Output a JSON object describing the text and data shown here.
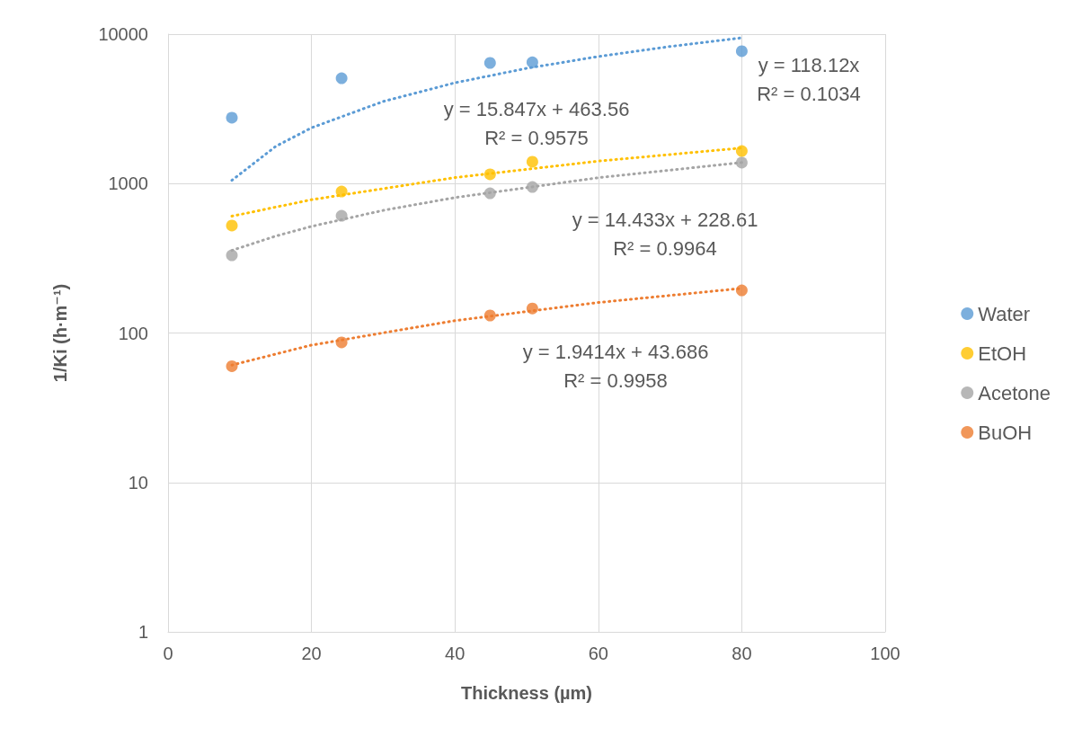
{
  "chart_data": {
    "type": "scatter",
    "xlabel": "Thickness (µm)",
    "ylabel": "1/Ki (h·m⁻¹)",
    "series": [
      {
        "name": "Water",
        "color": "#5b9bd5",
        "marker": "circle",
        "x": [
          8.9,
          24.2,
          44.9,
          50.8,
          80
        ],
        "values": [
          2760,
          5070,
          6420,
          6480,
          7690
        ]
      },
      {
        "name": "EtOH",
        "color": "#ffc000",
        "marker": "circle",
        "x": [
          8.9,
          24.2,
          44.9,
          50.8,
          80
        ],
        "values": [
          524,
          885,
          1153,
          1400,
          1652
        ]
      },
      {
        "name": "Acetone",
        "color": "#a5a5a5",
        "marker": "circle",
        "x": [
          8.9,
          24.2,
          44.9,
          50.8,
          80
        ],
        "values": [
          331,
          609,
          861,
          949,
          1380
        ]
      },
      {
        "name": "BuOH",
        "color": "#ed7d31",
        "marker": "circle",
        "x": [
          8.9,
          24.2,
          44.9,
          50.8,
          80
        ],
        "values": [
          60,
          86.5,
          131,
          146,
          193
        ]
      },
      {
        "type": "line",
        "color": "#5b9bd5",
        "marker": "none",
        "line_style": "dotted",
        "x": [
          8.9,
          15,
          20,
          30,
          40,
          50,
          60,
          70,
          80
        ],
        "values": [
          1051,
          1772,
          2362,
          3544,
          4725,
          5906,
          7087,
          8268,
          9450
        ]
      },
      {
        "type": "line",
        "color": "#ffc000",
        "marker": "none",
        "line_style": "dotted",
        "x": [
          8.9,
          20,
          40,
          60,
          80
        ],
        "values": [
          605,
          780,
          1097,
          1414,
          1731
        ]
      },
      {
        "type": "line",
        "color": "#a5a5a5",
        "marker": "none",
        "line_style": "dotted",
        "x": [
          8.9,
          15,
          20,
          30,
          40,
          60,
          80
        ],
        "values": [
          357,
          445,
          517,
          662,
          806,
          1095,
          1383
        ]
      },
      {
        "type": "line",
        "color": "#ed7d31",
        "marker": "none",
        "line_style": "dotted",
        "x": [
          8.9,
          20,
          40,
          60,
          80
        ],
        "values": [
          61,
          83,
          121,
          160,
          199
        ]
      }
    ],
    "annotations": [
      "y = 118.12x\nR² = 0.1034",
      "y = 15.847x + 463.56\nR² = 0.9575",
      "y = 14.433x + 228.61\nR² = 0.9964",
      "y = 1.9414x + 43.686\nR² = 0.9958"
    ],
    "xlim": [
      0,
      100
    ],
    "xticks": [
      0,
      20,
      40,
      60,
      80,
      100
    ],
    "ylim": [
      1,
      10000
    ],
    "yticks": [
      1,
      10,
      100,
      1000,
      10000
    ],
    "log": "y",
    "grid": true,
    "legend": "right"
  }
}
